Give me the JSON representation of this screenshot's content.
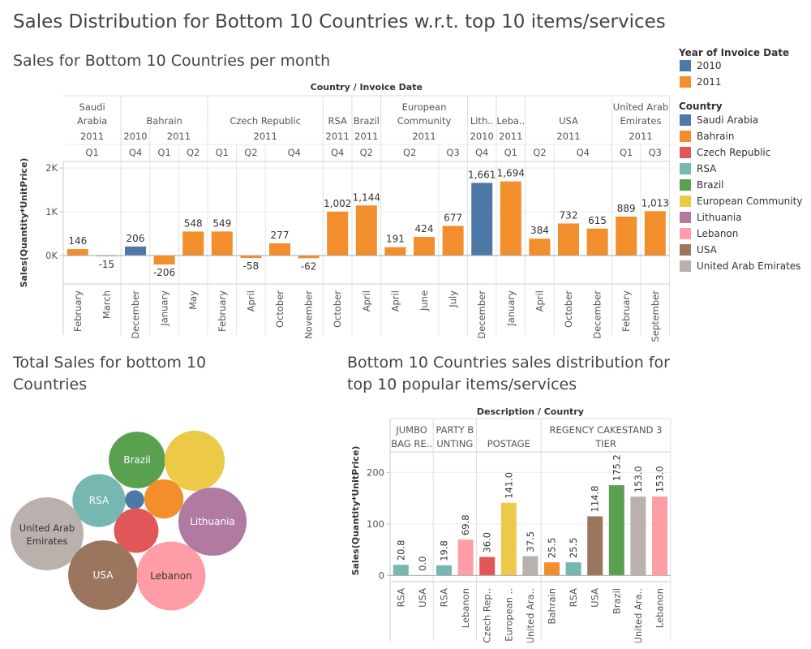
{
  "page": {
    "title": "Sales Distribution for Bottom 10 Countries w.r.t. top 10 items/services",
    "chart1_title": "Sales for Bottom 10 Countries per month",
    "chart2_title": "Total Sales for bottom 10 Countries",
    "chart3_title": "Bottom 10 Countries sales distribution for top 10 popular items/services"
  },
  "legend": {
    "year_title": "Year of Invoice Date",
    "years": [
      {
        "label": "2010",
        "color": "#4e79a7"
      },
      {
        "label": "2011",
        "color": "#f28e2b"
      }
    ],
    "country_title": "Country",
    "countries": [
      {
        "label": "Saudi Arabia",
        "color": "#4e79a7"
      },
      {
        "label": "Bahrain",
        "color": "#f28e2b"
      },
      {
        "label": "Czech Republic",
        "color": "#e15759"
      },
      {
        "label": "RSA",
        "color": "#76b7b2"
      },
      {
        "label": "Brazil",
        "color": "#59a14f"
      },
      {
        "label": "European Community",
        "color": "#edc948"
      },
      {
        "label": "Lithuania",
        "color": "#b07aa1"
      },
      {
        "label": "Lebanon",
        "color": "#ff9da7"
      },
      {
        "label": "USA",
        "color": "#9c755f"
      },
      {
        "label": "United Arab Emirates",
        "color": "#bab0ac"
      }
    ]
  },
  "chart_data": [
    {
      "type": "bar",
      "header_title": "Country / Invoice Date",
      "ylabel": "Sales(Quantity*UnitPrice)",
      "ylim": [
        -650,
        2150
      ],
      "yticks": [
        {
          "v": 0,
          "label": "0K"
        },
        {
          "v": 1000,
          "label": "1K"
        },
        {
          "v": 2000,
          "label": "2K"
        }
      ],
      "country_groups": [
        {
          "lines": [
            "Saudi",
            "Arabia"
          ],
          "count": 2
        },
        {
          "lines": [
            "Bahrain"
          ],
          "count": 3
        },
        {
          "lines": [
            "Czech Republic"
          ],
          "count": 4
        },
        {
          "lines": [
            "RSA"
          ],
          "count": 1
        },
        {
          "lines": [
            "Brazil"
          ],
          "count": 1
        },
        {
          "lines": [
            "European",
            "Community"
          ],
          "count": 3
        },
        {
          "lines": [
            "Lith.."
          ],
          "count": 1
        },
        {
          "lines": [
            "Leba.."
          ],
          "count": 1
        },
        {
          "lines": [
            "USA"
          ],
          "count": 3
        },
        {
          "lines": [
            "United Arab",
            "Emirates"
          ],
          "count": 2
        }
      ],
      "year_groups": [
        {
          "label": "2011",
          "count": 2
        },
        {
          "label": "2010",
          "count": 1
        },
        {
          "label": "2011",
          "count": 2
        },
        {
          "label": "2011",
          "count": 4
        },
        {
          "label": "2011",
          "count": 1
        },
        {
          "label": "2011",
          "count": 1
        },
        {
          "label": "2011",
          "count": 3
        },
        {
          "label": "2010",
          "count": 1
        },
        {
          "label": "2011",
          "count": 1
        },
        {
          "label": "2011",
          "count": 3
        },
        {
          "label": "2011",
          "count": 2
        }
      ],
      "quarter_groups": [
        {
          "label": "Q1",
          "count": 2
        },
        {
          "label": "Q4",
          "count": 1
        },
        {
          "label": "Q1",
          "count": 1
        },
        {
          "label": "Q2",
          "count": 1
        },
        {
          "label": "Q1",
          "count": 1
        },
        {
          "label": "Q2",
          "count": 1
        },
        {
          "label": "Q4",
          "count": 2
        },
        {
          "label": "Q4",
          "count": 1
        },
        {
          "label": "Q2",
          "count": 1
        },
        {
          "label": "Q2",
          "count": 2
        },
        {
          "label": "Q3",
          "count": 1
        },
        {
          "label": "Q4",
          "count": 1
        },
        {
          "label": "Q1",
          "count": 1
        },
        {
          "label": "Q2",
          "count": 1
        },
        {
          "label": "Q4",
          "count": 2
        },
        {
          "label": "Q1",
          "count": 1
        },
        {
          "label": "Q3",
          "count": 1
        }
      ],
      "bars": [
        {
          "month": "February",
          "value": 146,
          "label": "146",
          "year": "2011"
        },
        {
          "month": "March",
          "value": -15,
          "label": "-15",
          "year": "2011"
        },
        {
          "month": "December",
          "value": 206,
          "label": "206",
          "year": "2010"
        },
        {
          "month": "January",
          "value": -206,
          "label": "-206",
          "year": "2011"
        },
        {
          "month": "May",
          "value": 548,
          "label": "548",
          "year": "2011"
        },
        {
          "month": "February",
          "value": 549,
          "label": "549",
          "year": "2011"
        },
        {
          "month": "April",
          "value": -58,
          "label": "-58",
          "year": "2011"
        },
        {
          "month": "October",
          "value": 277,
          "label": "277",
          "year": "2011"
        },
        {
          "month": "November",
          "value": -62,
          "label": "-62",
          "year": "2011"
        },
        {
          "month": "October",
          "value": 1002,
          "label": "1,002",
          "year": "2011"
        },
        {
          "month": "April",
          "value": 1144,
          "label": "1,144",
          "year": "2011"
        },
        {
          "month": "April",
          "value": 191,
          "label": "191",
          "year": "2011"
        },
        {
          "month": "June",
          "value": 424,
          "label": "424",
          "year": "2011"
        },
        {
          "month": "July",
          "value": 677,
          "label": "677",
          "year": "2011"
        },
        {
          "month": "December",
          "value": 1661,
          "label": "1,661",
          "year": "2010"
        },
        {
          "month": "January",
          "value": 1694,
          "label": "1,694",
          "year": "2011"
        },
        {
          "month": "April",
          "value": 384,
          "label": "384",
          "year": "2011"
        },
        {
          "month": "October",
          "value": 732,
          "label": "732",
          "year": "2011"
        },
        {
          "month": "December",
          "value": 615,
          "label": "615",
          "year": "2011"
        },
        {
          "month": "February",
          "value": 889,
          "label": "889",
          "year": "2011"
        },
        {
          "month": "September",
          "value": 1013,
          "label": "1,013",
          "year": "2011"
        }
      ]
    },
    {
      "type": "bubble",
      "bubbles": [
        {
          "country": "Brazil",
          "label": "Brazil",
          "color": "#59a14f",
          "value": 1144
        },
        {
          "country": "European Community",
          "label": "",
          "color": "#edc948",
          "value": 1292
        },
        {
          "country": "RSA",
          "label": "RSA",
          "color": "#76b7b2",
          "value": 1002
        },
        {
          "country": "Saudi Arabia",
          "label": "",
          "color": "#4e79a7",
          "value": 131
        },
        {
          "country": "Bahrain",
          "label": "",
          "color": "#f28e2b",
          "value": 548
        },
        {
          "country": "Lithuania",
          "label": "Lithuania",
          "color": "#b07aa1",
          "value": 1661
        },
        {
          "country": "United Arab Emirates",
          "label": "United Arab Emirates",
          "color": "#bab0ac",
          "value": 1902
        },
        {
          "country": "Czech Republic",
          "label": "",
          "color": "#e15759",
          "value": 707
        },
        {
          "country": "USA",
          "label": "USA",
          "color": "#9c755f",
          "value": 1731
        },
        {
          "country": "Lebanon",
          "label": "Lebanon",
          "color": "#ff9da7",
          "value": 1694
        }
      ]
    },
    {
      "type": "bar",
      "header_title": "Description / Country",
      "ylabel": "Sales(Quantity*UnitPrice)",
      "ylim": [
        -12,
        232
      ],
      "yticks": [
        {
          "v": 0,
          "label": "0"
        },
        {
          "v": 100,
          "label": "100"
        },
        {
          "v": 200,
          "label": "200"
        }
      ],
      "groups": [
        {
          "lines": [
            "JUMBO",
            "BAG RE.."
          ],
          "count": 2
        },
        {
          "lines": [
            "PARTY B",
            "UNTING"
          ],
          "count": 2
        },
        {
          "lines": [
            "POSTAGE"
          ],
          "count": 3
        },
        {
          "lines": [
            "REGENCY CAKESTAND 3",
            "TIER"
          ],
          "count": 6
        }
      ],
      "bars": [
        {
          "country": "RSA",
          "value": 20.8,
          "label": "20.8",
          "color": "#76b7b2"
        },
        {
          "country": "USA",
          "value": 0.0,
          "label": "0.0",
          "color": "#9c755f"
        },
        {
          "country": "RSA",
          "value": 19.8,
          "label": "19.8",
          "color": "#76b7b2"
        },
        {
          "country": "Lebanon",
          "value": 69.8,
          "label": "69.8",
          "color": "#ff9da7"
        },
        {
          "country": "Czech Rep..",
          "value": 36.0,
          "label": "36.0",
          "color": "#e15759"
        },
        {
          "country": "European ..",
          "value": 141.0,
          "label": "141.0",
          "color": "#edc948"
        },
        {
          "country": "United Ara..",
          "value": 37.5,
          "label": "37.5",
          "color": "#bab0ac"
        },
        {
          "country": "Bahrain",
          "value": 25.5,
          "label": "25.5",
          "color": "#f28e2b"
        },
        {
          "country": "RSA",
          "value": 25.5,
          "label": "25.5",
          "color": "#76b7b2"
        },
        {
          "country": "USA",
          "value": 114.8,
          "label": "114.8",
          "color": "#9c755f"
        },
        {
          "country": "Brazil",
          "value": 175.2,
          "label": "175.2",
          "color": "#59a14f"
        },
        {
          "country": "United Ara..",
          "value": 153.0,
          "label": "153.0",
          "color": "#bab0ac"
        },
        {
          "country": "Lebanon",
          "value": 153.0,
          "label": "153.0",
          "color": "#ff9da7"
        }
      ]
    }
  ]
}
